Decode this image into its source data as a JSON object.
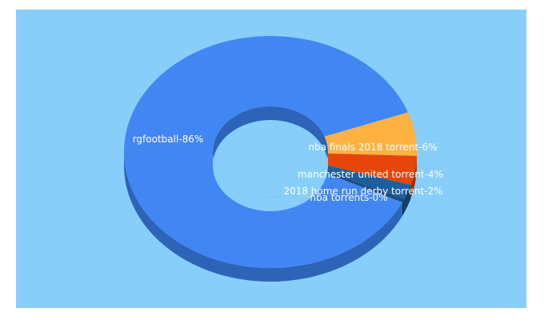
{
  "chart_data": {
    "type": "pie",
    "style": "3d-donut",
    "background_color": "#87cefa",
    "slices": [
      {
        "label": "rgfootball-86%",
        "name": "rgfootball",
        "value": 86,
        "color": "#4286f4",
        "side_color": "#2d64b8"
      },
      {
        "label": "nba finals 2018 torrent-6%",
        "name": "nba finals 2018 torrent",
        "value": 6,
        "color": "#ffb142",
        "side_color": "#c7882d"
      },
      {
        "label": "manchester united torrent-4%",
        "name": "manchester united torrent",
        "value": 4,
        "color": "#e8450a",
        "side_color": "#a33004"
      },
      {
        "label": "2018 home run derby torrent-2%",
        "name": "2018 home run derby torrent",
        "value": 2,
        "color": "#1b5fa0",
        "side_color": "#123f6a"
      },
      {
        "label": "nba torrents-0%",
        "name": "nba torrents",
        "value": 0.5,
        "color": "#1d4e78",
        "side_color": "#12334f"
      }
    ]
  }
}
